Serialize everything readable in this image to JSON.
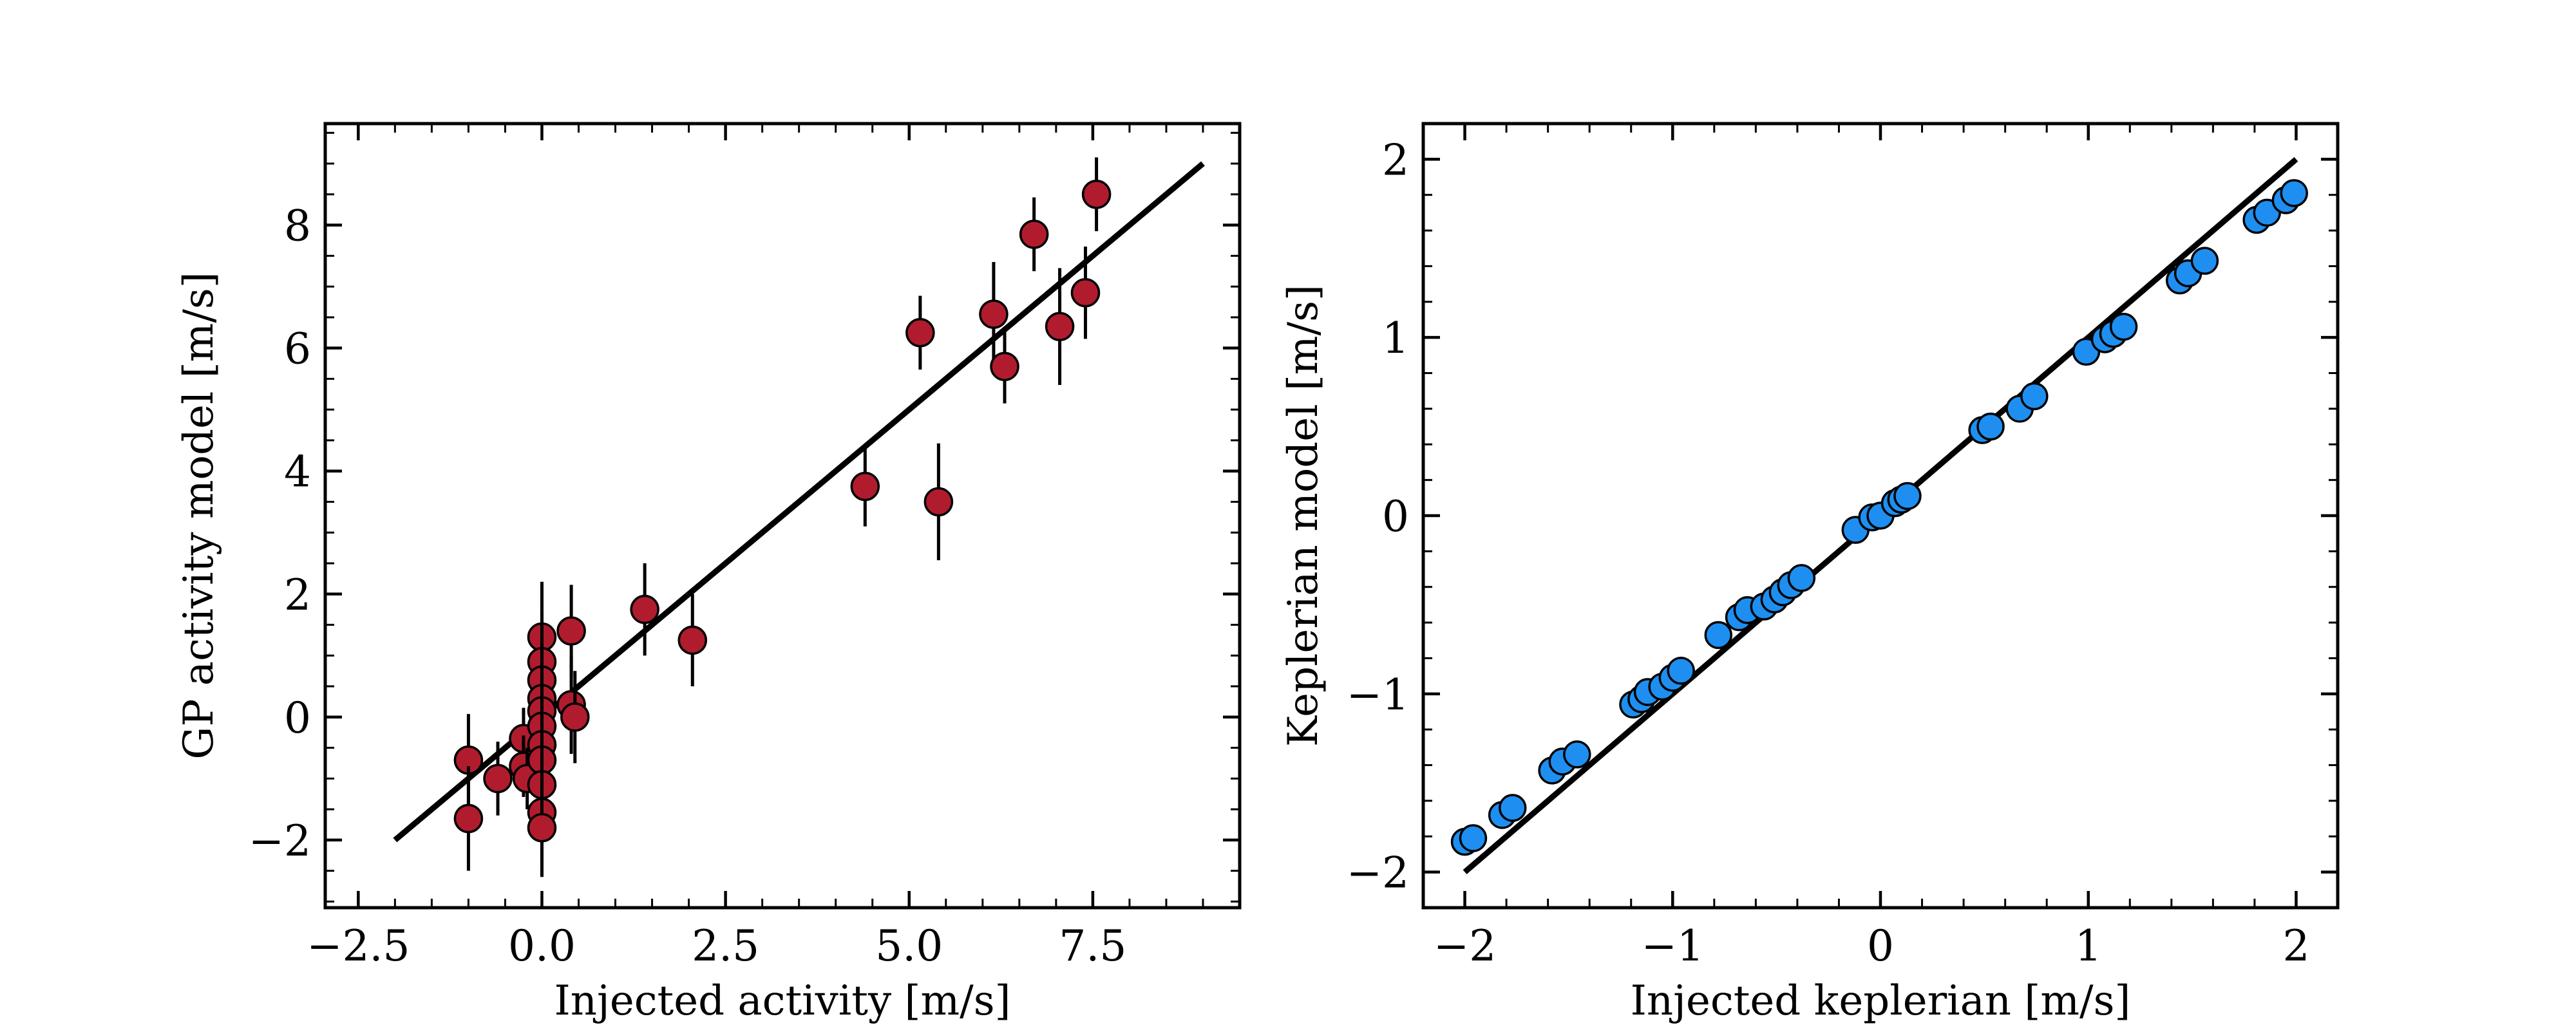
{
  "chart_data": [
    {
      "type": "scatter",
      "xlabel": "Injected activity [m/s]",
      "ylabel": "GP activity model [m/s]",
      "xlim": [
        -2.95,
        9.5
      ],
      "ylim": [
        -3.1,
        9.65
      ],
      "xticks": [
        -2.5,
        0.0,
        2.5,
        5.0,
        7.5
      ],
      "xtick_labels": [
        "−2.5",
        "0.0",
        "2.5",
        "5.0",
        "7.5"
      ],
      "yticks": [
        -2,
        0,
        2,
        4,
        6,
        8
      ],
      "ytick_labels": [
        "−2",
        "0",
        "2",
        "4",
        "6",
        "8"
      ],
      "marker_color": "#b01c2e",
      "line": {
        "x": [
          -2.0,
          9.0
        ],
        "y": [
          -2.0,
          9.0
        ]
      },
      "points": [
        {
          "x": -1.0,
          "y": -0.7,
          "err": 0.75
        },
        {
          "x": -1.0,
          "y": -1.65,
          "err": 0.85
        },
        {
          "x": -0.6,
          "y": -1.0,
          "err": 0.6
        },
        {
          "x": -0.25,
          "y": -0.35,
          "err": 0.5
        },
        {
          "x": -0.25,
          "y": -0.8,
          "err": 0.5
        },
        {
          "x": -0.2,
          "y": -1.0,
          "err": 0.5
        },
        {
          "x": 0.0,
          "y": 1.3,
          "err": 0.9
        },
        {
          "x": 0.0,
          "y": 0.9,
          "err": 0.8
        },
        {
          "x": 0.0,
          "y": 0.6,
          "err": 0.8
        },
        {
          "x": 0.0,
          "y": 0.3,
          "err": 0.8
        },
        {
          "x": 0.0,
          "y": 0.1,
          "err": 0.8
        },
        {
          "x": 0.0,
          "y": -0.15,
          "err": 0.8
        },
        {
          "x": 0.0,
          "y": -0.45,
          "err": 0.8
        },
        {
          "x": 0.0,
          "y": -0.7,
          "err": 0.8
        },
        {
          "x": 0.0,
          "y": -1.1,
          "err": 0.8
        },
        {
          "x": 0.0,
          "y": -1.55,
          "err": 0.8
        },
        {
          "x": 0.0,
          "y": -1.8,
          "err": 0.8
        },
        {
          "x": 0.4,
          "y": 1.4,
          "err": 0.75
        },
        {
          "x": 0.4,
          "y": 0.2,
          "err": 0.8
        },
        {
          "x": 0.45,
          "y": 0.0,
          "err": 0.75
        },
        {
          "x": 1.4,
          "y": 1.75,
          "err": 0.75
        },
        {
          "x": 2.05,
          "y": 1.25,
          "err": 0.75
        },
        {
          "x": 4.4,
          "y": 3.75,
          "err": 0.65
        },
        {
          "x": 5.15,
          "y": 6.25,
          "err": 0.6
        },
        {
          "x": 5.4,
          "y": 3.5,
          "err": 0.95
        },
        {
          "x": 6.15,
          "y": 6.55,
          "err": 0.85
        },
        {
          "x": 6.3,
          "y": 5.7,
          "err": 0.6
        },
        {
          "x": 6.7,
          "y": 7.85,
          "err": 0.6
        },
        {
          "x": 7.05,
          "y": 6.35,
          "err": 0.95
        },
        {
          "x": 7.4,
          "y": 6.9,
          "err": 0.75
        },
        {
          "x": 7.55,
          "y": 8.5,
          "err": 0.6
        }
      ]
    },
    {
      "type": "scatter",
      "xlabel": "Injected keplerian [m/s]",
      "ylabel": "Keplerian model [m/s]",
      "xlim": [
        -2.2,
        2.2
      ],
      "ylim": [
        -2.2,
        2.2
      ],
      "xticks": [
        -2,
        -1,
        0,
        1,
        2
      ],
      "xtick_labels": [
        "−2",
        "−1",
        "0",
        "1",
        "2"
      ],
      "yticks": [
        -2,
        -1,
        0,
        1,
        2
      ],
      "ytick_labels": [
        "−2",
        "−1",
        "0",
        "1",
        "2"
      ],
      "marker_color": "#1e8ff0",
      "line": {
        "x": [
          -2.0,
          2.0
        ],
        "y": [
          -2.0,
          2.0
        ]
      },
      "points": [
        {
          "x": -2.0,
          "y": -1.83
        },
        {
          "x": -1.96,
          "y": -1.81
        },
        {
          "x": -1.82,
          "y": -1.68
        },
        {
          "x": -1.77,
          "y": -1.64
        },
        {
          "x": -1.58,
          "y": -1.43
        },
        {
          "x": -1.53,
          "y": -1.38
        },
        {
          "x": -1.46,
          "y": -1.34
        },
        {
          "x": -1.19,
          "y": -1.06
        },
        {
          "x": -1.15,
          "y": -1.03
        },
        {
          "x": -1.12,
          "y": -0.99
        },
        {
          "x": -1.05,
          "y": -0.96
        },
        {
          "x": -1.0,
          "y": -0.91
        },
        {
          "x": -0.96,
          "y": -0.87
        },
        {
          "x": -0.78,
          "y": -0.67
        },
        {
          "x": -0.68,
          "y": -0.57
        },
        {
          "x": -0.64,
          "y": -0.53
        },
        {
          "x": -0.56,
          "y": -0.51
        },
        {
          "x": -0.51,
          "y": -0.47
        },
        {
          "x": -0.47,
          "y": -0.43
        },
        {
          "x": -0.43,
          "y": -0.39
        },
        {
          "x": -0.38,
          "y": -0.35
        },
        {
          "x": -0.12,
          "y": -0.08
        },
        {
          "x": -0.04,
          "y": -0.01
        },
        {
          "x": 0.0,
          "y": 0.0
        },
        {
          "x": 0.07,
          "y": 0.07
        },
        {
          "x": 0.1,
          "y": 0.09
        },
        {
          "x": 0.13,
          "y": 0.11
        },
        {
          "x": 0.49,
          "y": 0.48
        },
        {
          "x": 0.53,
          "y": 0.5
        },
        {
          "x": 0.67,
          "y": 0.6
        },
        {
          "x": 0.74,
          "y": 0.67
        },
        {
          "x": 0.99,
          "y": 0.92
        },
        {
          "x": 1.08,
          "y": 0.99
        },
        {
          "x": 1.12,
          "y": 1.02
        },
        {
          "x": 1.17,
          "y": 1.06
        },
        {
          "x": 1.44,
          "y": 1.32
        },
        {
          "x": 1.48,
          "y": 1.36
        },
        {
          "x": 1.56,
          "y": 1.43
        },
        {
          "x": 1.81,
          "y": 1.66
        },
        {
          "x": 1.86,
          "y": 1.7
        },
        {
          "x": 1.95,
          "y": 1.77
        },
        {
          "x": 1.99,
          "y": 1.81
        }
      ]
    }
  ]
}
